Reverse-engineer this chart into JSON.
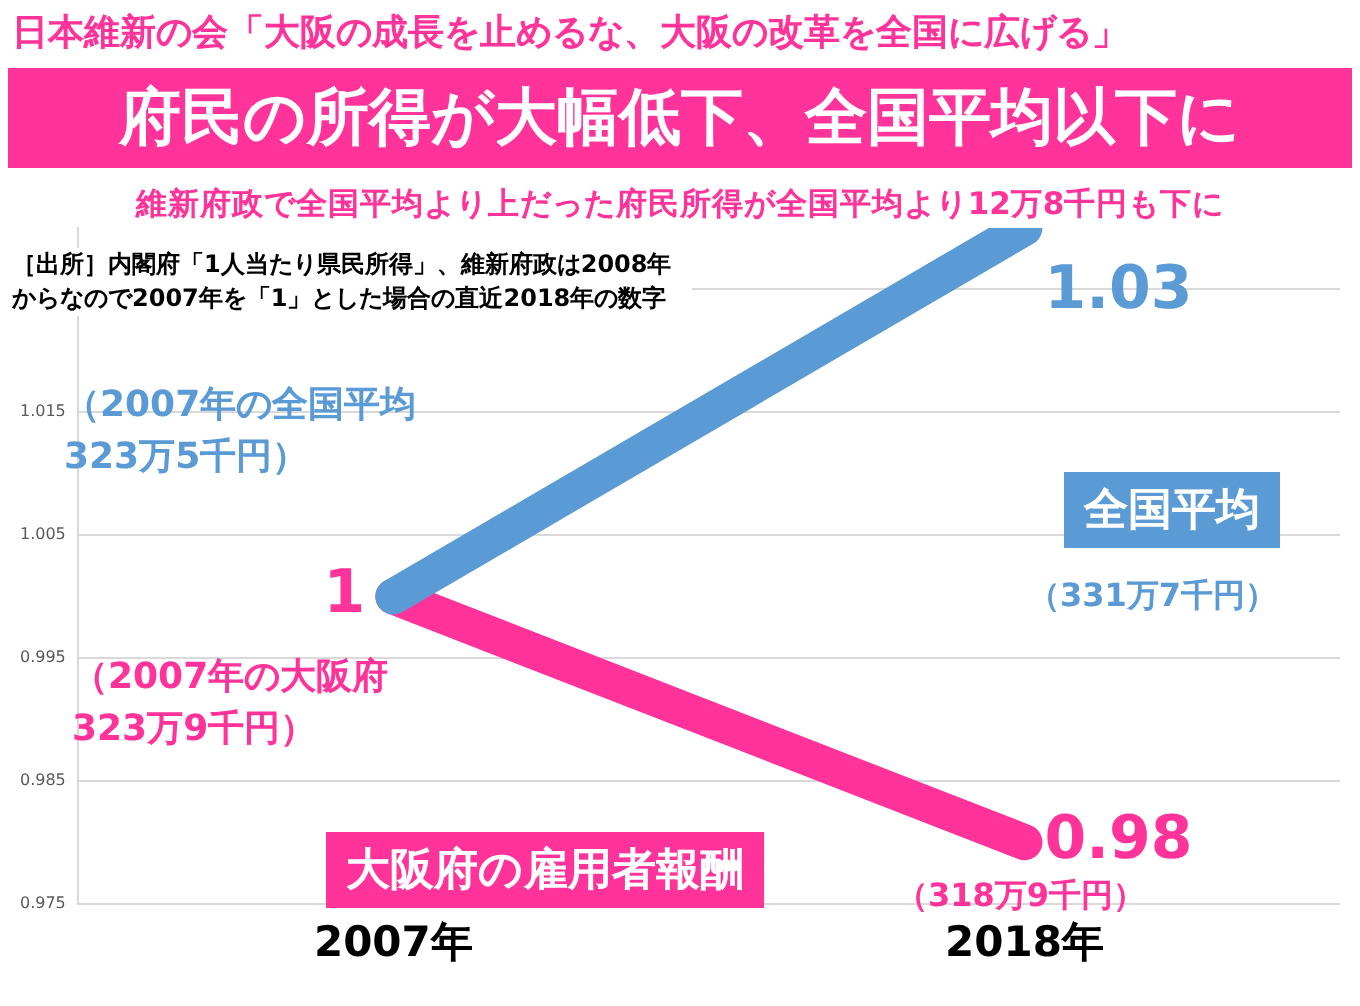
{
  "chart_data": {
    "type": "line",
    "title": "府民の所得が大幅低下、全国平均以下に",
    "subtitle": "維新府政で全国平均より上だった府民所得が全国平均より12万8千円も下に",
    "annotations": [
      "日本維新の会「大阪の成長を止めるな、大阪の改革を全国に広げる」",
      "［出所］内閣府「1人当たり県民所得」、維新府政は2008年からなので2007年を「1」とした場合の直近2018年の数字",
      "（2007年の全国平均323万5千円）",
      "（2007年の大阪府323万9千円）",
      "（331万7千円）",
      "（318万9千円）"
    ],
    "categories": [
      "2007年",
      "2018年"
    ],
    "series": [
      {
        "name": "全国平均",
        "color": "#5b9bd5",
        "values": [
          1,
          1.03
        ],
        "value_labels": [
          null,
          "1.03"
        ]
      },
      {
        "name": "大阪府の雇用者報酬",
        "color": "#ff3399",
        "values": [
          1,
          0.98
        ],
        "value_labels": [
          "1",
          "0.98"
        ]
      }
    ],
    "ylim": [
      0.975,
      1.03
    ],
    "yticks": [
      0.975,
      0.985,
      0.995,
      1.005,
      1.015,
      {
        "value": 1.025,
        "label": null
      }
    ],
    "grid": "y",
    "legend": false,
    "marker": "none"
  }
}
